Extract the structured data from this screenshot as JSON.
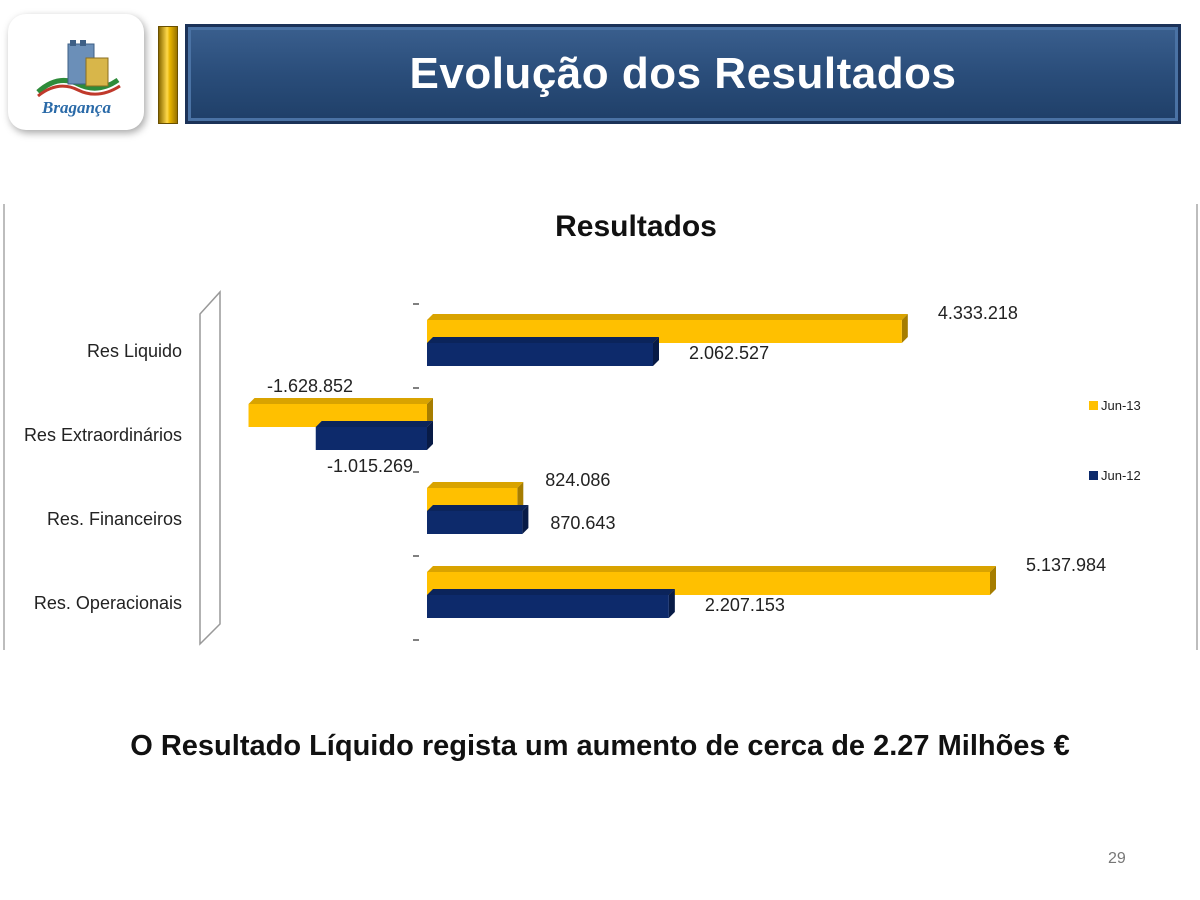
{
  "slide": {
    "title": "Evolução dos Resultados",
    "logo_text": "Bragança",
    "caption": "O Resultado Líquido regista um aumento de cerca de 2.27 Milhões €",
    "page_number": "29"
  },
  "chart_data": {
    "type": "bar",
    "orientation": "horizontal",
    "title": "Resultados",
    "categories": [
      "Res Liquido",
      "Res Extraordinários",
      "Res. Financeiros",
      "Res. Operacionais"
    ],
    "series": [
      {
        "name": "Jun-13",
        "color": "#ffc000",
        "values": [
          4333218,
          -1628852,
          824086,
          5137984
        ],
        "labels": [
          "4.333.218",
          "-1.628.852",
          "824.086",
          "5.137.984"
        ]
      },
      {
        "name": "Jun-12",
        "color": "#0d2a6b",
        "values": [
          2062527,
          -1015269,
          870643,
          2207153
        ],
        "labels": [
          "2.062.527",
          "-1.015.269",
          "870.643",
          "2.207.153"
        ]
      }
    ],
    "xlim": [
      -1800000,
      5600000
    ],
    "legend": "right",
    "grid": false
  }
}
